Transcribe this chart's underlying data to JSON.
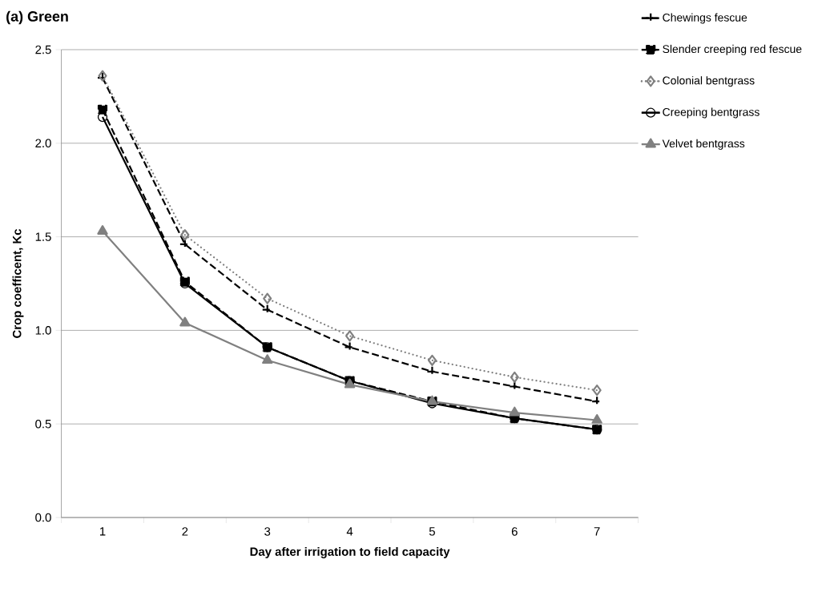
{
  "chart_data": {
    "type": "line",
    "title": "(a) Green",
    "xlabel": "Day after irrigation to field capacity",
    "ylabel": "Crop coefficent, Kc",
    "categories": [
      "1",
      "2",
      "3",
      "4",
      "5",
      "6",
      "7"
    ],
    "series": [
      {
        "name": "Chewings fescue",
        "color": "#000000",
        "marker": "cross",
        "line_style": "dashed",
        "values": [
          2.35,
          1.46,
          1.11,
          0.91,
          0.78,
          0.7,
          0.62
        ]
      },
      {
        "name": "Slender creeping red fescue",
        "color": "#000000",
        "marker": "square",
        "line_style": "dashed",
        "values": [
          2.18,
          1.26,
          0.91,
          0.73,
          0.62,
          0.53,
          0.47
        ]
      },
      {
        "name": "Colonial bentgrass",
        "color": "#808080",
        "marker": "diamond",
        "line_style": "dotted",
        "values": [
          2.36,
          1.51,
          1.17,
          0.97,
          0.84,
          0.75,
          0.68
        ]
      },
      {
        "name": "Creeping bentgrass",
        "color": "#000000",
        "marker": "circle",
        "line_style": "solid",
        "values": [
          2.14,
          1.25,
          0.91,
          0.73,
          0.61,
          0.53,
          0.47
        ]
      },
      {
        "name": "Velvet bentgrass",
        "color": "#808080",
        "marker": "triangle",
        "line_style": "solid",
        "values": [
          1.53,
          1.04,
          0.84,
          0.71,
          0.62,
          0.56,
          0.52
        ]
      }
    ],
    "ylim": [
      0,
      2.5
    ],
    "yticks": [
      {
        "value": 0,
        "label": "0.0"
      },
      {
        "value": 0.5,
        "label": "0.5"
      },
      {
        "value": 1,
        "label": "1.0"
      },
      {
        "value": 1.5,
        "label": "1.5"
      },
      {
        "value": 2,
        "label": "2.0"
      },
      {
        "value": 2.5,
        "label": "2.5"
      }
    ],
    "grid": "y",
    "legend": "top right"
  }
}
